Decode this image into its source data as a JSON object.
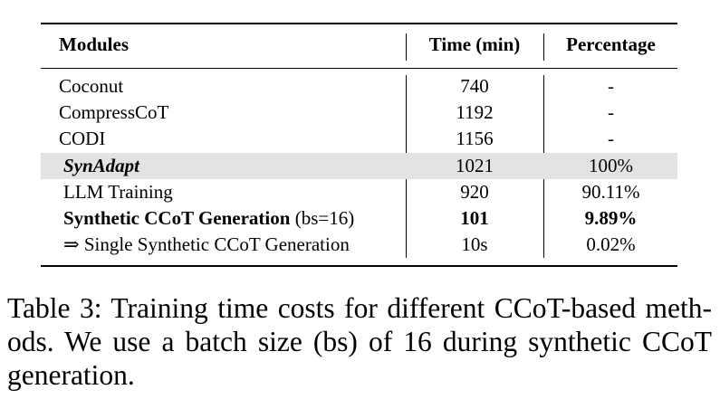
{
  "table": {
    "headers": {
      "modules": "Modules",
      "time": "Time (min)",
      "percentage": "Percentage"
    },
    "rows": [
      {
        "module": "Coconut",
        "time": "740",
        "percentage": "-"
      },
      {
        "module": "CompressCoT",
        "time": "1192",
        "percentage": "-"
      },
      {
        "module": "CODI",
        "time": "1156",
        "percentage": "-"
      },
      {
        "module": "SynAdapt",
        "time": "1021",
        "percentage": "100%"
      },
      {
        "module": "LLM Training",
        "time": "920",
        "percentage": "90.11%"
      },
      {
        "module_bold": "Synthetic CCoT Generation",
        "module_suffix": " (bs=16)",
        "time": "101",
        "percentage": "9.89%"
      },
      {
        "module": "⇒ Single Synthetic CCoT Generation",
        "time": "10s",
        "percentage": "0.02%"
      }
    ]
  },
  "caption": {
    "line1": "Table 3: Training time costs for different CCoT-based meth-",
    "line2": "ods. We use a batch size (bs) of 16 during synthetic CCoT",
    "line3": "generation."
  }
}
